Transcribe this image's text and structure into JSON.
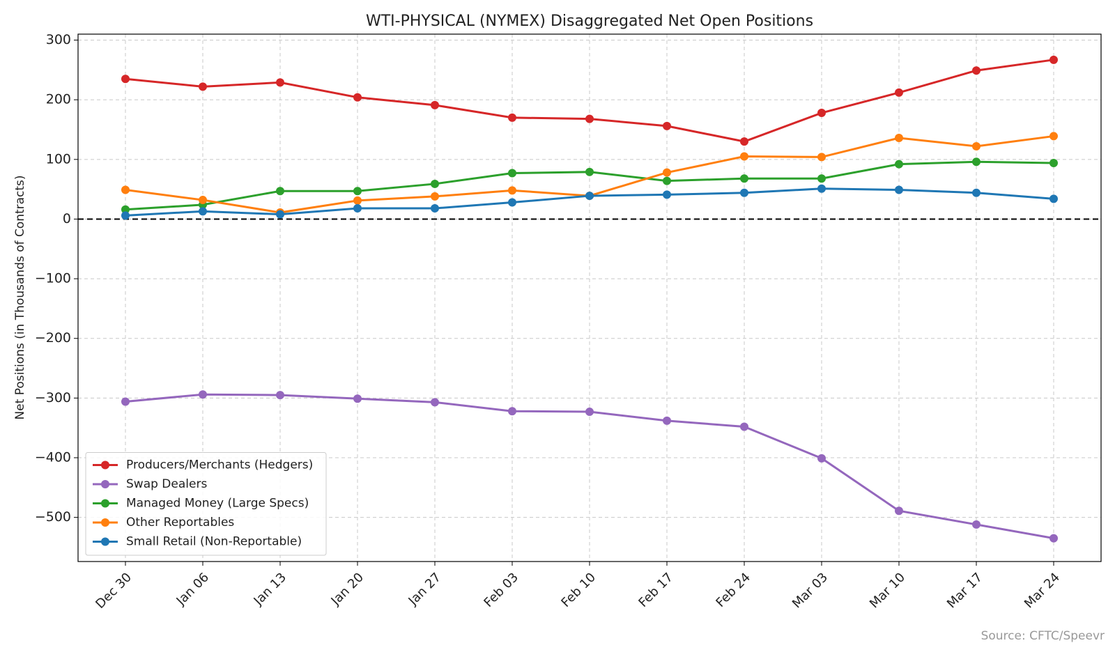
{
  "chart_data": {
    "type": "line",
    "title": "WTI-PHYSICAL (NYMEX) Disaggregated Net Open Positions",
    "y_label": "Net Positions (in Thousands of Contracts)",
    "source": "Source: CFTC/Speevr",
    "categories": [
      "Dec 30",
      "Jan 06",
      "Jan 13",
      "Jan 20",
      "Jan 27",
      "Feb 03",
      "Feb 10",
      "Feb 17",
      "Feb 24",
      "Mar 03",
      "Mar 10",
      "Mar 17",
      "Mar 24"
    ],
    "series": [
      {
        "name": "Producers/Merchants (Hedgers)",
        "color": "#d62728",
        "values": [
          235,
          222,
          229,
          204,
          191,
          170,
          168,
          156,
          130,
          178,
          212,
          249,
          267
        ]
      },
      {
        "name": "Swap Dealers",
        "color": "#9467bd",
        "values": [
          -306,
          -294,
          -295,
          -301,
          -307,
          -322,
          -323,
          -338,
          -348,
          -401,
          -489,
          -512,
          -535
        ]
      },
      {
        "name": "Managed Money (Large Specs)",
        "color": "#2ca02c",
        "values": [
          16,
          24,
          47,
          47,
          59,
          77,
          79,
          64,
          68,
          68,
          92,
          96,
          94
        ]
      },
      {
        "name": "Other Reportables",
        "color": "#ff7f0e",
        "values": [
          49,
          32,
          11,
          31,
          38,
          48,
          39,
          78,
          105,
          104,
          136,
          122,
          139
        ]
      },
      {
        "name": "Small Retail (Non-Reportable)",
        "color": "#1f77b4",
        "values": [
          6,
          13,
          8,
          18,
          18,
          28,
          39,
          41,
          44,
          51,
          49,
          44,
          34
        ]
      }
    ],
    "ylim": [
      -574,
      310
    ],
    "yticks": [
      {
        "value": -500,
        "label": "−500"
      },
      {
        "value": -400,
        "label": "−400"
      },
      {
        "value": -300,
        "label": "−300"
      },
      {
        "value": -200,
        "label": "−200"
      },
      {
        "value": -100,
        "label": "−100"
      },
      0,
      100,
      200,
      300
    ],
    "reference_line": 0,
    "grid": true,
    "legend": "lower left"
  }
}
